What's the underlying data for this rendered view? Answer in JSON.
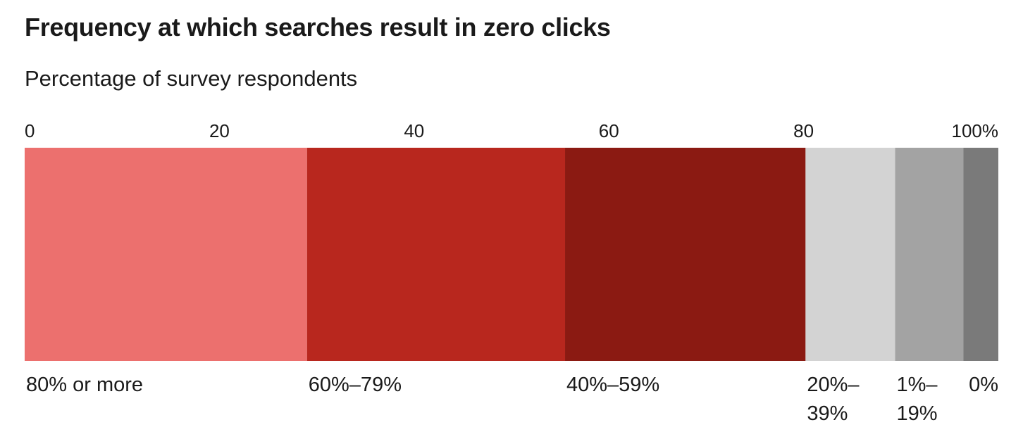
{
  "title": "Frequency at which searches result in zero clicks",
  "subtitle": "Percentage of survey respondents",
  "chart_data": {
    "type": "bar",
    "orientation": "horizontal-stacked",
    "title": "Frequency at which searches result in zero clicks",
    "subtitle": "Percentage of survey respondents",
    "xlim": [
      0,
      100
    ],
    "ticks": [
      {
        "value": 0,
        "label": "0"
      },
      {
        "value": 20,
        "label": "20"
      },
      {
        "value": 40,
        "label": "40"
      },
      {
        "value": 60,
        "label": "60"
      },
      {
        "value": 80,
        "label": "80"
      },
      {
        "value": 100,
        "label": "100%"
      }
    ],
    "segments": [
      {
        "category": "80% or more",
        "label_lines": [
          "80% or more"
        ],
        "value": 29,
        "color": "#EC706E"
      },
      {
        "category": "60%–79%",
        "label_lines": [
          "60%–79%"
        ],
        "value": 26.5,
        "color": "#B8271E"
      },
      {
        "category": "40%–59%",
        "label_lines": [
          "40%–59%"
        ],
        "value": 24.7,
        "color": "#8B1A12"
      },
      {
        "category": "20%–39%",
        "label_lines": [
          "20%–",
          "39%"
        ],
        "value": 9.2,
        "color": "#D3D3D3"
      },
      {
        "category": "1%–19%",
        "label_lines": [
          "1%–",
          "19%"
        ],
        "value": 7.0,
        "color": "#A3A3A3"
      },
      {
        "category": "0%",
        "label_lines": [
          "0%"
        ],
        "value": 3.6,
        "color": "#7A7A7A"
      }
    ],
    "grid": false,
    "legend": "none"
  }
}
